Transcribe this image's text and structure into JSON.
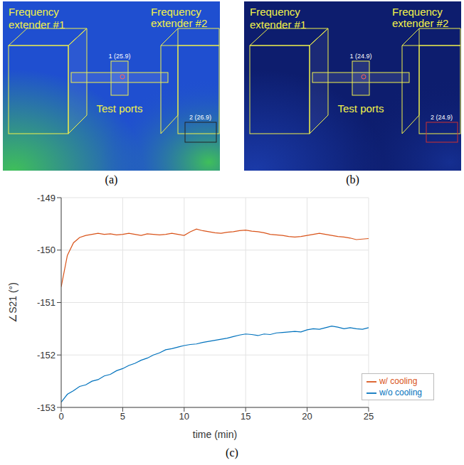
{
  "panels": [
    {
      "label": "(a)",
      "extender_1": "Frequency extender #1",
      "extender_2": "Frequency extender #2",
      "ports": "Test ports",
      "marker_1": "1 (25.9)",
      "marker_2": "2 (26.9)",
      "background": "#1f4fd0",
      "warm": "#3fbf5a"
    },
    {
      "label": "(b)",
      "extender_1": "Frequency extender #1",
      "extender_2": "Frequency extender #2",
      "ports": "Test ports",
      "marker_1": "1 (24.9)",
      "marker_2": "2 (24.9)",
      "background": "#0d1d6e",
      "warm": "#1a3aa8"
    }
  ],
  "chart_data": {
    "type": "line",
    "panel_label": "(c)",
    "xlabel": "time (min)",
    "ylabel": "∠S21 (°)",
    "x": [
      0,
      0.5,
      1,
      1.5,
      2,
      2.5,
      3,
      3.5,
      4,
      4.5,
      5,
      5.5,
      6,
      6.5,
      7,
      7.5,
      8,
      8.5,
      9,
      9.5,
      10,
      10.5,
      11,
      11.5,
      12,
      12.5,
      13,
      13.5,
      14,
      14.5,
      15,
      15.5,
      16,
      16.5,
      17,
      17.5,
      18,
      18.5,
      19,
      19.5,
      20,
      20.5,
      21,
      21.5,
      22,
      22.5,
      23,
      23.5,
      24,
      24.5,
      25
    ],
    "series": [
      {
        "name": "w/o cooling",
        "color": "#0072bd",
        "values": [
          -152.9,
          -152.75,
          -152.68,
          -152.6,
          -152.57,
          -152.5,
          -152.47,
          -152.4,
          -152.37,
          -152.3,
          -152.26,
          -152.2,
          -152.16,
          -152.1,
          -152.06,
          -152.0,
          -151.96,
          -151.9,
          -151.88,
          -151.85,
          -151.82,
          -151.8,
          -151.79,
          -151.76,
          -151.74,
          -151.72,
          -151.7,
          -151.68,
          -151.65,
          -151.62,
          -151.6,
          -151.61,
          -151.63,
          -151.6,
          -151.61,
          -151.58,
          -151.57,
          -151.56,
          -151.55,
          -151.56,
          -151.52,
          -151.5,
          -151.51,
          -151.48,
          -151.45,
          -151.47,
          -151.5,
          -151.48,
          -151.5,
          -151.51,
          -151.48
        ]
      },
      {
        "name": "w/ cooling",
        "color": "#d95319",
        "values": [
          -150.7,
          -150.1,
          -149.86,
          -149.76,
          -149.72,
          -149.7,
          -149.68,
          -149.7,
          -149.69,
          -149.71,
          -149.7,
          -149.68,
          -149.7,
          -149.72,
          -149.69,
          -149.7,
          -149.71,
          -149.7,
          -149.68,
          -149.7,
          -149.72,
          -149.65,
          -149.6,
          -149.63,
          -149.65,
          -149.67,
          -149.68,
          -149.66,
          -149.65,
          -149.63,
          -149.62,
          -149.64,
          -149.65,
          -149.67,
          -149.7,
          -149.71,
          -149.72,
          -149.74,
          -149.75,
          -149.74,
          -149.72,
          -149.7,
          -149.68,
          -149.7,
          -149.72,
          -149.74,
          -149.75,
          -149.77,
          -149.8,
          -149.79,
          -149.78
        ]
      }
    ],
    "xlim": [
      0,
      25
    ],
    "ylim": [
      -153,
      -149
    ],
    "xticks": [
      0,
      5,
      10,
      15,
      20,
      25
    ],
    "yticks": [
      -153,
      -152,
      -151,
      -150,
      -149
    ],
    "grid": true,
    "legend": "lower right"
  }
}
